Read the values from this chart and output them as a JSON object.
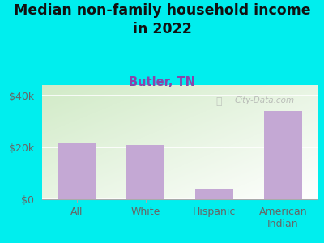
{
  "categories": [
    "All",
    "White",
    "Hispanic",
    "American\nIndian"
  ],
  "values": [
    22000,
    21000,
    4000,
    34000
  ],
  "bar_color": "#c4a8d4",
  "title": "Median non-family household income\nin 2022",
  "subtitle": "Butler, TN",
  "subtitle_color": "#8844aa",
  "title_color": "#111111",
  "bg_color": "#00EEEE",
  "yticks": [
    0,
    20000,
    40000
  ],
  "ytick_labels": [
    "$0",
    "$20k",
    "$40k"
  ],
  "ylim": [
    0,
    44000
  ],
  "watermark": "City-Data.com",
  "watermark_color": "#aaaaaa",
  "title_fontsize": 12.5,
  "subtitle_fontsize": 10.5,
  "tick_fontsize": 9,
  "axis_label_color": "#666666"
}
